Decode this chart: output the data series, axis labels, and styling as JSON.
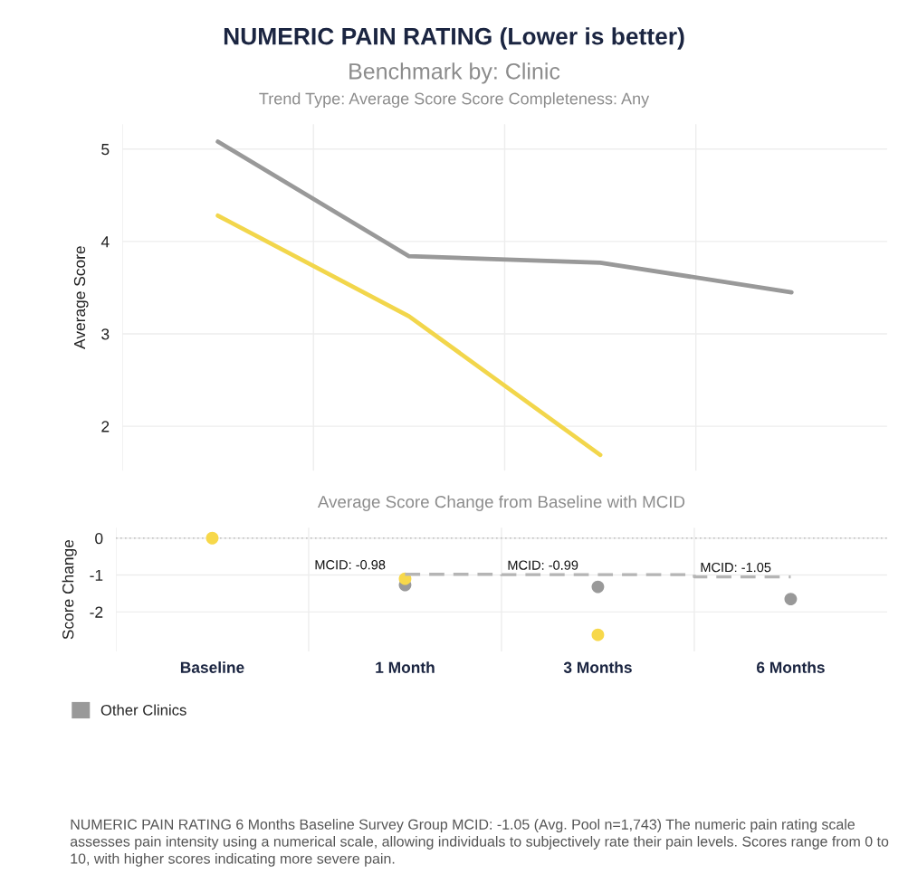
{
  "chart_data": [
    {
      "type": "line",
      "title": "NUMERIC PAIN RATING (Lower is better)",
      "subtitle": "Benchmark by: Clinic",
      "annotations": [
        "Trend Type: Average Score Score Completeness: Any"
      ],
      "ylabel": "Average Score",
      "categories": [
        null,
        null,
        null,
        null
      ],
      "series": [
        {
          "color": "#999999",
          "values": [
            5.08,
            3.84,
            3.77,
            3.45
          ]
        },
        {
          "color": "#f2d64b",
          "values": [
            4.28,
            3.19,
            1.69,
            null
          ]
        }
      ],
      "ylim": [
        1.52,
        5.27
      ],
      "yticks": [
        2,
        3,
        4,
        5
      ],
      "grid": true,
      "tick_labels": "y"
    },
    {
      "type": "scatter",
      "title": "Average Score Change from Baseline with MCID",
      "ylabel": "Score Change",
      "categories": [
        "Baseline",
        "1 Month",
        "3 Months",
        "6 Months"
      ],
      "series": [
        {
          "name": "Other Clinics",
          "color": "#999999",
          "values": [
            null,
            -1.27,
            -1.32,
            -1.65
          ]
        },
        {
          "color": "#f7d84a",
          "values": [
            0,
            -1.1,
            -2.62,
            null
          ]
        },
        {
          "type": "step",
          "color": "#b5b5b5",
          "line_style": "dashed",
          "marker": "none",
          "values": [
            null,
            -0.98,
            -0.99,
            -1.05
          ],
          "value_labels": [
            null,
            "MCID: -0.98",
            "MCID: -0.99",
            "MCID: -1.05"
          ]
        }
      ],
      "ref_lines": [
        {
          "axis": "y",
          "value": 0,
          "color": "#bdbdbd",
          "line_style": "dotted"
        }
      ],
      "ylim": [
        -3.07,
        0.28
      ],
      "yticks": [
        -2,
        -1,
        0
      ],
      "grid": true,
      "marker": "circle",
      "legend": "bottom",
      "annotations": [
        "NUMERIC PAIN RATING 6 Months Baseline Survey Group MCID: -1.05 (Avg. Pool n=1,743) The numeric pain rating scale assesses pain intensity using a numerical scale, allowing individuals to subjectively rate their pain levels. Scores range from 0 to 10, with higher scores indicating more severe pain."
      ]
    }
  ]
}
